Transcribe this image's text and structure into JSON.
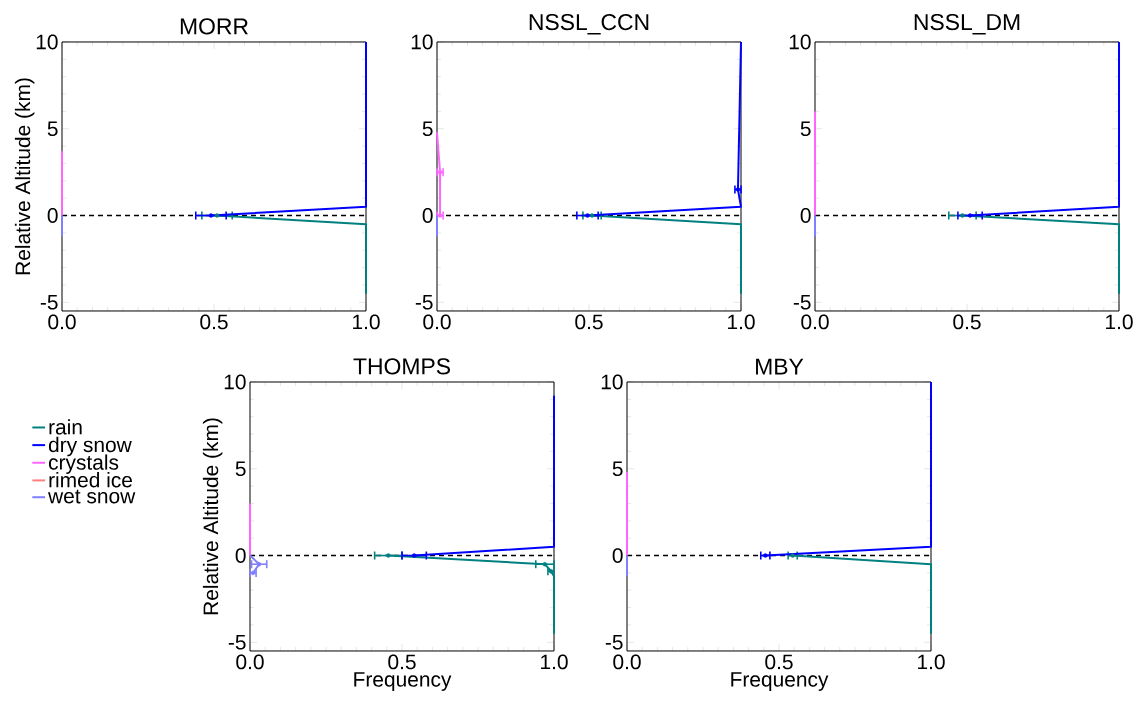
{
  "chart_data": [
    {
      "type": "line",
      "title": "MORR",
      "ylabel": "Relative Altitude (km)",
      "xlim": [
        0,
        1
      ],
      "ylim": [
        -5.5,
        10
      ],
      "xticks": [
        {
          "value": 0,
          "label": "0.0"
        },
        {
          "value": 0.5,
          "label": "0.5"
        },
        {
          "value": 1,
          "label": "1.0"
        }
      ],
      "yticks": [
        -5,
        0,
        5,
        10
      ],
      "marker": "none",
      "line_style": "solid",
      "grid": false,
      "ref_lines": [
        {
          "axis": "y",
          "value": 0,
          "color": "#000000",
          "line_style": "dashed"
        }
      ],
      "series": [
        {
          "color": "#008080",
          "x": [
            0.51,
            1.0,
            1.0
          ],
          "values": [
            0,
            -0.5,
            -4.5
          ],
          "xerrors": [
            0.05,
            null,
            null
          ]
        },
        {
          "color": "#0000ff",
          "x": [
            0.49,
            1.0,
            1.0
          ],
          "values": [
            0,
            0.5,
            10
          ],
          "xerrors": [
            0.05,
            null,
            null
          ]
        },
        {
          "color": "#ff66ff",
          "x": [
            0.0,
            0.0
          ],
          "values": [
            0,
            3.7
          ]
        },
        {
          "color": "#7f7fff",
          "x": [
            0.0,
            0.0
          ],
          "values": [
            -1.2,
            0
          ]
        }
      ]
    },
    {
      "type": "line",
      "title": "NSSL_CCN",
      "xlim": [
        0,
        1
      ],
      "ylim": [
        -5.5,
        10
      ],
      "xticks": [
        {
          "value": 0,
          "label": "0.0"
        },
        {
          "value": 0.5,
          "label": "0.5"
        },
        {
          "value": 1,
          "label": "1.0"
        }
      ],
      "yticks": [
        -5,
        0,
        5,
        10
      ],
      "marker": "none",
      "line_style": "solid",
      "grid": false,
      "ref_lines": [
        {
          "axis": "y",
          "value": 0,
          "color": "#000000",
          "line_style": "dashed"
        }
      ],
      "series": [
        {
          "color": "#008080",
          "x": [
            0.51,
            1.0,
            1.0
          ],
          "values": [
            0,
            -0.5,
            -4.5
          ],
          "xerrors": [
            0.03,
            null,
            null
          ]
        },
        {
          "color": "#0000ff",
          "x": [
            0.495,
            1.0,
            0.99,
            1.0
          ],
          "values": [
            0,
            0.5,
            1.5,
            10
          ],
          "xerrors": [
            0.035,
            null,
            0.01,
            null
          ]
        },
        {
          "color": "#ff66ff",
          "x": [
            0.01,
            0.01,
            0.0
          ],
          "values": [
            0,
            2.5,
            4.8
          ],
          "xerrors": [
            0.01,
            0.01,
            null
          ]
        },
        {
          "color": "#7f7fff",
          "x": [
            0.0,
            0.0
          ],
          "values": [
            -1.2,
            0
          ]
        }
      ]
    },
    {
      "type": "line",
      "title": "NSSL_DM",
      "xlim": [
        0,
        1
      ],
      "ylim": [
        -5.5,
        10
      ],
      "xticks": [
        {
          "value": 0,
          "label": "0.0"
        },
        {
          "value": 0.5,
          "label": "0.5"
        },
        {
          "value": 1,
          "label": "1.0"
        }
      ],
      "yticks": [
        -5,
        0,
        5,
        10
      ],
      "marker": "none",
      "line_style": "solid",
      "grid": false,
      "ref_lines": [
        {
          "axis": "y",
          "value": 0,
          "color": "#000000",
          "line_style": "dashed"
        }
      ],
      "series": [
        {
          "color": "#008080",
          "x": [
            0.485,
            1.0,
            1.0
          ],
          "values": [
            0,
            -0.5,
            -4.5
          ],
          "xerrors": [
            0.045,
            null,
            null
          ]
        },
        {
          "color": "#0000ff",
          "x": [
            0.51,
            1.0,
            1.0
          ],
          "values": [
            0,
            0.5,
            10
          ],
          "xerrors": [
            0.04,
            null,
            null
          ]
        },
        {
          "color": "#ff66ff",
          "x": [
            0.0,
            0.0
          ],
          "values": [
            0,
            6
          ]
        },
        {
          "color": "#7f7fff",
          "x": [
            0.0,
            0.0
          ],
          "values": [
            -1.2,
            0
          ]
        }
      ]
    },
    {
      "type": "line",
      "title": "THOMPS",
      "xlabel": "Frequency",
      "ylabel": "Relative Altitude (km)",
      "xlim": [
        0,
        1
      ],
      "ylim": [
        -5.5,
        10
      ],
      "xticks": [
        {
          "value": 0,
          "label": "0.0"
        },
        {
          "value": 0.5,
          "label": "0.5"
        },
        {
          "value": 1,
          "label": "1.0"
        }
      ],
      "yticks": [
        -5,
        0,
        5,
        10
      ],
      "marker": "none",
      "line_style": "solid",
      "grid": false,
      "legend": "left",
      "ref_lines": [
        {
          "axis": "y",
          "value": 0,
          "color": "#000000",
          "line_style": "dashed"
        }
      ],
      "series": [
        {
          "name": "rain",
          "color": "#008080",
          "x": [
            0.455,
            0.97,
            0.99,
            1.0,
            1.0
          ],
          "values": [
            0,
            -0.5,
            -0.9,
            -1.2,
            -4.5
          ],
          "xerrors": [
            0.045,
            0.03,
            0.01,
            null,
            null
          ]
        },
        {
          "name": "dry snow",
          "color": "#0000ff",
          "x": [
            0.54,
            1.0,
            1.0
          ],
          "values": [
            0,
            0.5,
            9.2
          ],
          "xerrors": [
            0.04,
            null,
            null
          ]
        },
        {
          "name": "crystals",
          "color": "#ff66ff",
          "x": [
            0.0,
            0.0
          ],
          "values": [
            0,
            3
          ]
        },
        {
          "name": "rimed ice",
          "color": "#ff7f7f",
          "x": [
            null
          ],
          "values": [
            null
          ]
        },
        {
          "name": "wet snow",
          "color": "#7f7fff",
          "x": [
            0.01,
            0.03,
            0.0
          ],
          "values": [
            -1.0,
            -0.5,
            0
          ],
          "xerrors": [
            0.01,
            0.025,
            null
          ]
        }
      ]
    },
    {
      "type": "line",
      "title": "MBY",
      "xlabel": "Frequency",
      "xlim": [
        0,
        1
      ],
      "ylim": [
        -5.5,
        10
      ],
      "xticks": [
        {
          "value": 0,
          "label": "0.0"
        },
        {
          "value": 0.5,
          "label": "0.5"
        },
        {
          "value": 1,
          "label": "1.0"
        }
      ],
      "yticks": [
        -5,
        0,
        5,
        10
      ],
      "marker": "none",
      "line_style": "solid",
      "grid": false,
      "ref_lines": [
        {
          "axis": "y",
          "value": 0,
          "color": "#000000",
          "line_style": "dashed"
        }
      ],
      "series": [
        {
          "color": "#008080",
          "x": [
            0.545,
            1.0,
            1.0
          ],
          "values": [
            0,
            -0.5,
            -4.5
          ],
          "xerrors": [
            0.015,
            null,
            null
          ]
        },
        {
          "color": "#0000ff",
          "x": [
            0.455,
            1.0,
            1.0
          ],
          "values": [
            0,
            0.5,
            10
          ],
          "xerrors": [
            0.015,
            null,
            null
          ]
        },
        {
          "color": "#ff66ff",
          "x": [
            0.0,
            0.0
          ],
          "values": [
            0,
            4.8
          ]
        },
        {
          "color": "#7f7fff",
          "x": [
            0.0,
            0.0
          ],
          "values": [
            -1.2,
            0
          ]
        }
      ]
    }
  ]
}
